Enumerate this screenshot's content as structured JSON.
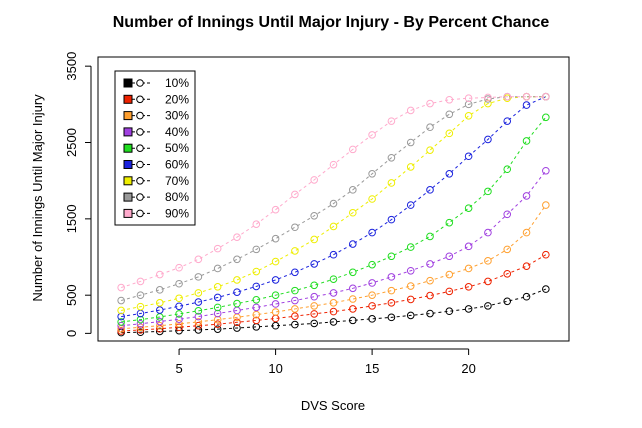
{
  "chart_data": {
    "type": "scatter",
    "title": "Number of Innings Until Major Injury - By Percent Chance",
    "xlabel": "DVS Score",
    "ylabel": "Number of Innings Until Major Injury",
    "xlim": [
      0.8,
      25.2
    ],
    "ylim": [
      -100,
      3620
    ],
    "xticks": [
      5,
      10,
      15,
      20
    ],
    "yticks": [
      0,
      500,
      1500,
      2500,
      3500
    ],
    "grid": false,
    "legend_position": "top-left",
    "x": [
      2,
      3,
      4,
      5,
      6,
      7,
      8,
      9,
      10,
      11,
      12,
      13,
      14,
      15,
      16,
      17,
      18,
      19,
      20,
      21,
      22,
      23,
      24
    ],
    "series": [
      {
        "name": "10%",
        "color": "#000000",
        "values": [
          10,
          15,
          25,
          35,
          45,
          55,
          70,
          85,
          100,
          115,
          130,
          150,
          170,
          190,
          210,
          235,
          260,
          290,
          320,
          360,
          420,
          480,
          580
        ]
      },
      {
        "name": "20%",
        "color": "#ee2200",
        "values": [
          30,
          45,
          60,
          80,
          100,
          120,
          145,
          170,
          195,
          225,
          255,
          285,
          320,
          360,
          400,
          445,
          495,
          550,
          610,
          680,
          780,
          880,
          1030
        ]
      },
      {
        "name": "30%",
        "color": "#ffa030",
        "values": [
          60,
          80,
          100,
          125,
          150,
          180,
          210,
          245,
          280,
          320,
          360,
          400,
          450,
          500,
          560,
          620,
          690,
          770,
          850,
          950,
          1100,
          1320,
          1680
        ]
      },
      {
        "name": "40%",
        "color": "#a040e0",
        "values": [
          100,
          125,
          155,
          185,
          220,
          260,
          300,
          340,
          385,
          430,
          480,
          530,
          590,
          660,
          740,
          820,
          910,
          1010,
          1140,
          1320,
          1560,
          1800,
          2130
        ]
      },
      {
        "name": "50%",
        "color": "#20dd20",
        "values": [
          150,
          180,
          215,
          255,
          295,
          340,
          390,
          440,
          500,
          560,
          630,
          710,
          800,
          900,
          1010,
          1130,
          1270,
          1450,
          1640,
          1860,
          2150,
          2520,
          2830
        ]
      },
      {
        "name": "60%",
        "color": "#1a22dd",
        "values": [
          220,
          260,
          305,
          355,
          410,
          470,
          540,
          615,
          700,
          800,
          910,
          1030,
          1170,
          1320,
          1490,
          1680,
          1880,
          2090,
          2320,
          2540,
          2780,
          2990,
          3100
        ]
      },
      {
        "name": "70%",
        "color": "#eeee00",
        "values": [
          300,
          350,
          400,
          460,
          530,
          610,
          700,
          810,
          940,
          1080,
          1230,
          1400,
          1580,
          1760,
          1970,
          2180,
          2400,
          2620,
          2850,
          3010,
          3080,
          3100,
          3100
        ]
      },
      {
        "name": "80%",
        "color": "#999999",
        "values": [
          430,
          500,
          570,
          650,
          740,
          850,
          970,
          1100,
          1240,
          1390,
          1540,
          1700,
          1880,
          2090,
          2300,
          2500,
          2700,
          2870,
          3000,
          3070,
          3100,
          3100,
          3100
        ]
      },
      {
        "name": "90%",
        "color": "#ffaacc",
        "values": [
          600,
          680,
          770,
          860,
          970,
          1110,
          1260,
          1430,
          1620,
          1820,
          2010,
          2210,
          2410,
          2600,
          2780,
          2920,
          3010,
          3060,
          3080,
          3090,
          3100,
          3100,
          3100
        ]
      }
    ]
  }
}
